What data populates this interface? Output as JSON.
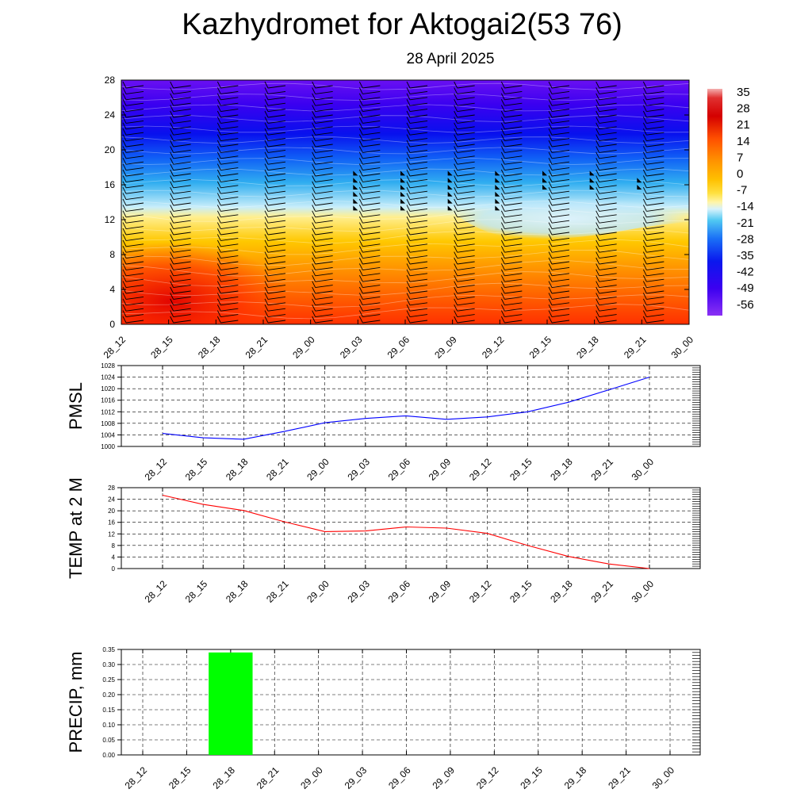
{
  "header": {
    "title": "Kazhydromet for Aktogai2(53 76)",
    "date": "28 April 2025"
  },
  "time_labels": [
    "28_12",
    "28_15",
    "28_18",
    "28_21",
    "29_00",
    "29_03",
    "29_06",
    "29_09",
    "29_12",
    "29_15",
    "29_18",
    "29_21",
    "30_00"
  ],
  "chart_data": [
    {
      "type": "heatmap",
      "title": "",
      "ylim": [
        0,
        28
      ],
      "yticks": [
        0,
        4,
        8,
        12,
        16,
        20,
        24,
        28
      ],
      "grid": false,
      "colorbar": {
        "labels": [
          "35",
          "28",
          "21",
          "14",
          "7",
          "0",
          "-7",
          "-14",
          "-21",
          "-28",
          "-35",
          "-42",
          "-49",
          "-56"
        ],
        "colors": [
          "#d40000",
          "#ff3c00",
          "#ff7a00",
          "#ffb000",
          "#ffe000",
          "#fff6a0",
          "#c8eefa",
          "#3cc0f0",
          "#1c74f8",
          "#0814ee",
          "#4000f0",
          "#7a22f2"
        ]
      },
      "wind_barbs": "shown at each 3-hourly column on every level"
    },
    {
      "type": "line",
      "ylabel": "PMSL",
      "ylim": [
        1000,
        1028
      ],
      "yticks": [
        1000,
        1004,
        1008,
        1012,
        1016,
        1020,
        1024,
        1028
      ],
      "line_color": "#0000ff",
      "series": [
        {
          "values": [
            1004.5,
            1003,
            1002.5,
            1005.2,
            1008.2,
            1009.7,
            1010.6,
            1009.4,
            1010.2,
            1012.0,
            1015.3,
            1019.6,
            1024.0
          ]
        }
      ],
      "grid": true
    },
    {
      "type": "line",
      "ylabel": "TEMP at 2 M",
      "ylim": [
        0,
        28
      ],
      "yticks": [
        0,
        4,
        8,
        12,
        16,
        20,
        24,
        28
      ],
      "line_color": "#ff0000",
      "series": [
        {
          "values": [
            25.4,
            22.2,
            20.1,
            16.2,
            12.8,
            13.0,
            14.4,
            14.0,
            12.2,
            8.0,
            4.2,
            1.6,
            0.0
          ]
        }
      ],
      "grid": true
    },
    {
      "type": "bar",
      "ylabel": "PRECIP, mm",
      "ylim": [
        0,
        0.35
      ],
      "yticks": [
        "0.00",
        "0.05",
        "0.10",
        "0.15",
        "0.20",
        "0.25",
        "0.30",
        "0.35"
      ],
      "bar_color": "#00ff00",
      "values": [
        0,
        0,
        0.34,
        0,
        0,
        0,
        0,
        0,
        0,
        0,
        0,
        0,
        0
      ],
      "grid": true
    }
  ]
}
